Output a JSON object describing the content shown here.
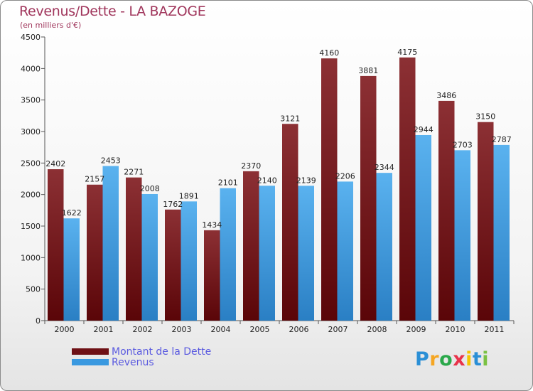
{
  "header": {
    "title": "Revenus/Dette - LA BAZOGE",
    "subtitle": "(en milliers d'€)"
  },
  "chart_data": {
    "type": "bar",
    "title": "Revenus/Dette - LA BAZOGE",
    "subtitle": "(en milliers d'€)",
    "xlabel": "",
    "ylabel": "",
    "ylim": [
      0,
      4500
    ],
    "yticks": [
      0,
      500,
      1000,
      1500,
      2000,
      2500,
      3000,
      3500,
      4000,
      4500
    ],
    "grid": false,
    "legend_position": "bottom-left",
    "categories": [
      "2000",
      "2001",
      "2002",
      "2003",
      "2004",
      "2005",
      "2006",
      "2007",
      "2008",
      "2009",
      "2010",
      "2011"
    ],
    "series": [
      {
        "name": "Montant de la Dette",
        "color": "#7a1e22",
        "values": [
          2402,
          2157,
          2271,
          1762,
          1434,
          2370,
          3121,
          4160,
          3881,
          4175,
          3486,
          3150
        ]
      },
      {
        "name": "Revenus",
        "color": "#3a99e0",
        "values": [
          1622,
          2453,
          2008,
          1891,
          2101,
          2140,
          2139,
          2206,
          2344,
          2944,
          2703,
          2787
        ]
      }
    ]
  },
  "legend": {
    "items": [
      {
        "label": "Montant de la Dette",
        "color": "#6e1015"
      },
      {
        "label": "Revenus",
        "color": "#3a99e0"
      }
    ]
  },
  "brand": {
    "letters": [
      {
        "ch": "P",
        "color": "#2a8fd6"
      },
      {
        "ch": "r",
        "color": "#f5a623"
      },
      {
        "ch": "o",
        "color": "#2aa84a"
      },
      {
        "ch": "x",
        "color": "#e8334a"
      },
      {
        "ch": "i",
        "color": "#f5c400"
      },
      {
        "ch": "t",
        "color": "#2a8fd6"
      },
      {
        "ch": "i",
        "color": "#7ac143"
      }
    ]
  }
}
